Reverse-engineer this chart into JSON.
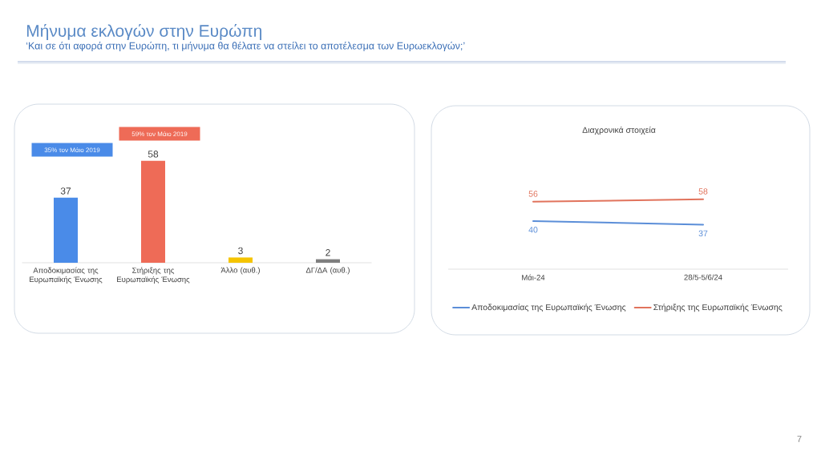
{
  "chart_data": [
    {
      "type": "bar",
      "title": "Μήνυμα εκλογών στην Ευρώπη",
      "subtitle": "‘Και σε ότι αφορά στην Ευρώπη, τι μήνυμα θα θέλατε να στείλει το αποτέλεσμα των Ευρωεκλογών;’",
      "categories": [
        "Αποδοκιμασίας της Ευρωπαϊκής Ένωσης",
        "Στήριξης της Ευρωπαϊκής Ένωσης",
        "Άλλο (αυθ.)",
        "ΔΓ/ΔΑ (αυθ.)"
      ],
      "values": [
        37,
        58,
        3,
        2
      ],
      "colors": [
        "#4A8BE8",
        "#EE6B57",
        "#F5C400",
        "#7F7F7F"
      ],
      "data_labels": true,
      "annotations": [
        "35% τον Μάιο 2019",
        "59% τον Μάιο 2019"
      ]
    },
    {
      "type": "line",
      "title": "Διαχρονικά στοιχεία",
      "categories": [
        "Μάι-24",
        "28/5-5/6/24"
      ],
      "series": [
        {
          "name": "Αποδοκιμασίας της Ευρωπαϊκής Ένωσης",
          "color": "#5B8ED8",
          "values": [
            40,
            37
          ]
        },
        {
          "name": "Στήριξης της Ευρωπαϊκής Ένωσης",
          "color": "#E1735C",
          "values": [
            56,
            58
          ]
        }
      ],
      "data_labels": true,
      "legend": "bottom",
      "annotations": [
        "7"
      ]
    }
  ]
}
